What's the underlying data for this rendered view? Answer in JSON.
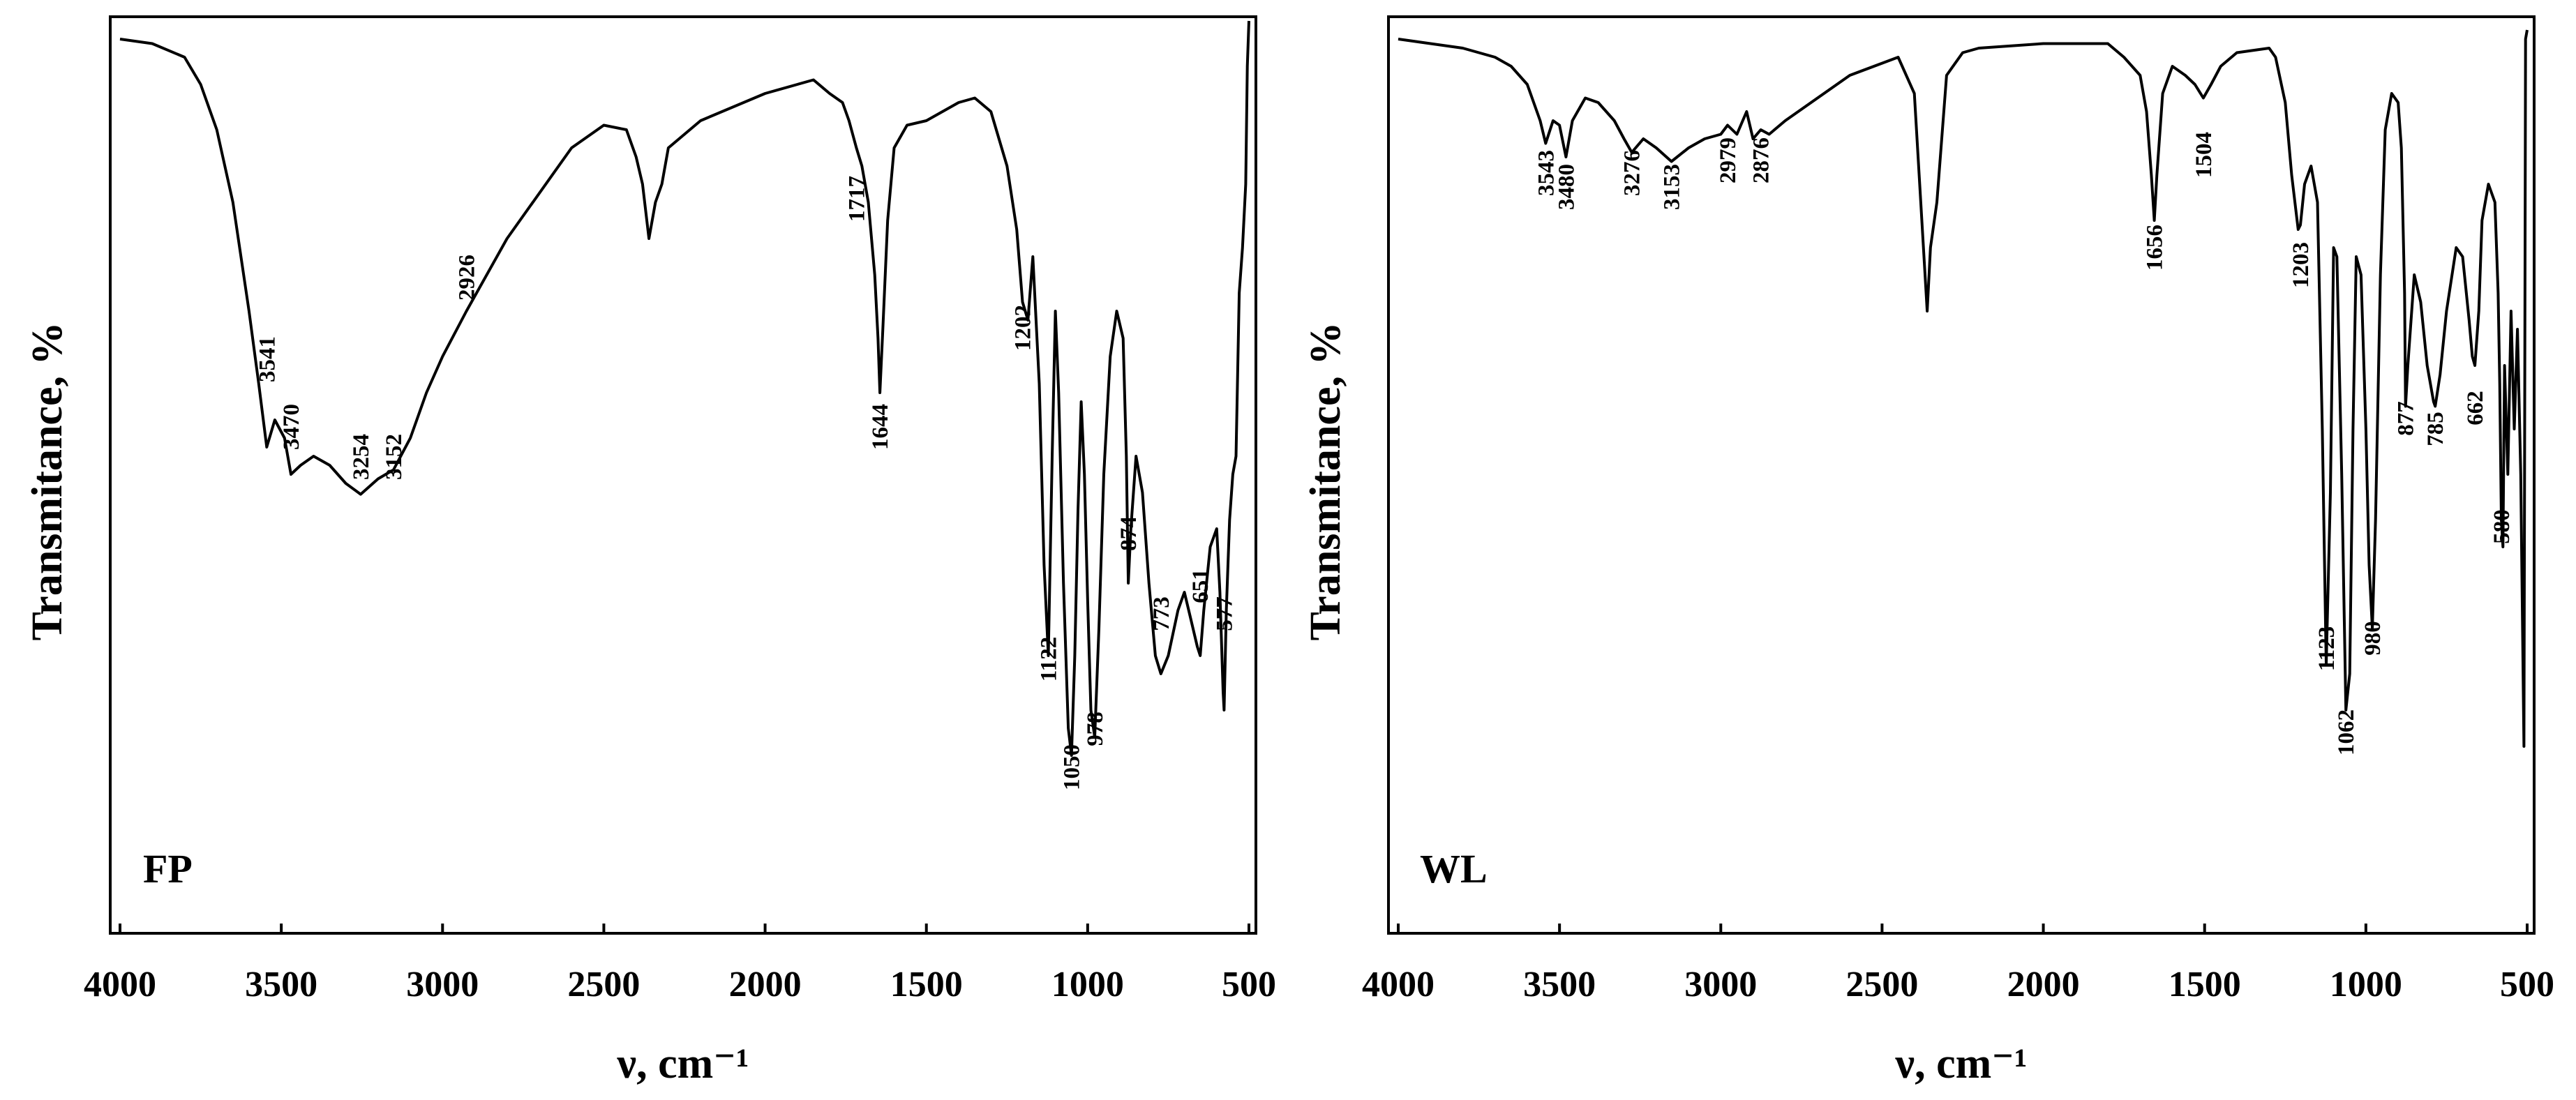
{
  "chart_data": [
    {
      "type": "line",
      "title": "",
      "sample_label": "FP",
      "xlabel": "ν, cm⁻¹",
      "ylabel": "Transmitance, %",
      "xlim": [
        4000,
        500
      ],
      "ylim": [
        0,
        100
      ],
      "xticks": [
        4000,
        3500,
        3000,
        2500,
        2000,
        1500,
        1000,
        500
      ],
      "peak_labels": [
        "3541",
        "3470",
        "3254",
        "3152",
        "2926",
        "1717",
        "1644",
        "1202",
        "1122",
        "1050",
        "978",
        "874",
        "773",
        "651",
        "577"
      ],
      "series": [
        {
          "name": "FP",
          "x": [
            4000,
            3900,
            3800,
            3750,
            3700,
            3650,
            3600,
            3570,
            3545,
            3541,
            3520,
            3490,
            3470,
            3440,
            3400,
            3350,
            3300,
            3254,
            3200,
            3152,
            3100,
            3050,
            3000,
            2926,
            2800,
            2600,
            2500,
            2430,
            2400,
            2380,
            2360,
            2340,
            2320,
            2300,
            2200,
            2000,
            1900,
            1850,
            1800,
            1760,
            1740,
            1717,
            1700,
            1680,
            1660,
            1650,
            1644,
            1635,
            1620,
            1600,
            1560,
            1500,
            1400,
            1350,
            1300,
            1250,
            1220,
            1202,
            1185,
            1170,
            1150,
            1135,
            1122,
            1110,
            1100,
            1090,
            1075,
            1060,
            1050,
            1040,
            1030,
            1020,
            1010,
            1000,
            990,
            978,
            965,
            950,
            930,
            910,
            890,
            880,
            874,
            866,
            850,
            830,
            810,
            790,
            773,
            750,
            720,
            700,
            680,
            660,
            651,
            640,
            620,
            600,
            590,
            580,
            577,
            570,
            560,
            550,
            540,
            530,
            520,
            510,
            505,
            500
          ],
          "y": [
            98,
            97.5,
            96,
            93,
            88,
            80,
            68,
            60,
            53,
            53.5,
            56,
            54,
            50,
            51,
            52,
            51,
            49,
            47.8,
            49.5,
            50.5,
            54,
            59,
            63,
            68,
            76,
            86,
            88.5,
            88,
            85,
            82,
            76,
            80,
            82,
            86,
            89,
            92,
            93,
            93.5,
            92,
            91,
            89,
            86,
            84,
            80,
            72,
            65,
            59,
            66,
            78,
            86,
            88.5,
            89,
            91,
            91.5,
            90,
            84,
            77,
            69,
            67,
            74,
            60,
            40,
            30,
            52,
            68,
            59,
            38,
            22,
            19,
            30,
            46,
            58,
            50,
            36,
            24,
            21,
            33,
            50,
            63,
            68,
            65,
            52,
            38,
            44,
            52,
            48,
            38,
            30,
            28,
            30,
            35,
            37,
            34,
            31,
            30,
            35,
            42,
            44,
            37,
            26,
            24,
            35,
            45,
            50,
            52,
            70,
            75,
            82,
            95,
            100
          ]
        }
      ]
    },
    {
      "type": "line",
      "title": "",
      "sample_label": "WL",
      "xlabel": "ν, cm⁻¹",
      "ylabel": "Transmitance, %",
      "xlim": [
        4000,
        500
      ],
      "ylim": [
        0,
        100
      ],
      "xticks": [
        4000,
        3500,
        3000,
        2500,
        2000,
        1500,
        1000,
        500
      ],
      "peak_labels": [
        "3543",
        "3480",
        "3276",
        "3153",
        "2979",
        "2876",
        "1656",
        "1504",
        "1203",
        "1123",
        "1062",
        "980",
        "877",
        "785",
        "662",
        "580"
      ],
      "series": [
        {
          "name": "WL",
          "x": [
            4000,
            3900,
            3800,
            3700,
            3650,
            3600,
            3560,
            3543,
            3520,
            3500,
            3480,
            3460,
            3420,
            3380,
            3330,
            3300,
            3276,
            3240,
            3200,
            3153,
            3100,
            3050,
            3000,
            2979,
            2950,
            2920,
            2900,
            2876,
            2850,
            2800,
            2600,
            2450,
            2400,
            2380,
            2360,
            2350,
            2330,
            2300,
            2250,
            2200,
            2000,
            1800,
            1750,
            1700,
            1680,
            1665,
            1656,
            1648,
            1630,
            1600,
            1560,
            1530,
            1504,
            1480,
            1450,
            1400,
            1300,
            1280,
            1250,
            1230,
            1210,
            1203,
            1190,
            1170,
            1150,
            1135,
            1123,
            1110,
            1100,
            1090,
            1075,
            1062,
            1050,
            1040,
            1030,
            1015,
            1000,
            990,
            980,
            970,
            955,
            940,
            920,
            900,
            890,
            880,
            877,
            870,
            860,
            850,
            830,
            810,
            790,
            785,
            770,
            750,
            720,
            700,
            680,
            670,
            662,
            650,
            640,
            620,
            600,
            590,
            585,
            580,
            575,
            570,
            560,
            550,
            540,
            530,
            520,
            510,
            505,
            500
          ],
          "y": [
            98,
            97.5,
            97,
            96,
            95,
            93,
            89,
            86.5,
            89,
            88.5,
            85,
            89,
            91.5,
            91,
            89,
            87,
            85.5,
            87,
            86,
            84.5,
            86,
            87,
            87.5,
            88.5,
            87.5,
            90,
            87,
            88,
            87.5,
            89,
            94,
            96,
            92,
            80,
            68,
            75,
            80,
            94,
            96.5,
            97,
            97.5,
            97.5,
            96,
            94,
            90,
            83,
            78,
            83,
            92,
            95,
            94,
            93,
            91.5,
            93,
            95,
            96.5,
            97,
            96,
            91,
            83,
            77,
            77.5,
            82,
            84,
            80,
            55,
            29,
            48,
            75,
            74,
            50,
            24,
            28,
            55,
            74,
            72,
            55,
            40,
            33,
            45,
            72,
            88,
            92,
            91,
            86,
            70,
            57.5,
            62,
            67,
            72,
            69,
            62,
            58,
            57.5,
            61,
            68,
            75,
            74,
            67,
            63,
            62,
            68,
            78,
            82,
            80,
            70,
            60,
            45,
            42,
            62,
            50,
            68,
            55,
            66,
            50,
            20,
            98,
            99
          ]
        }
      ]
    }
  ]
}
